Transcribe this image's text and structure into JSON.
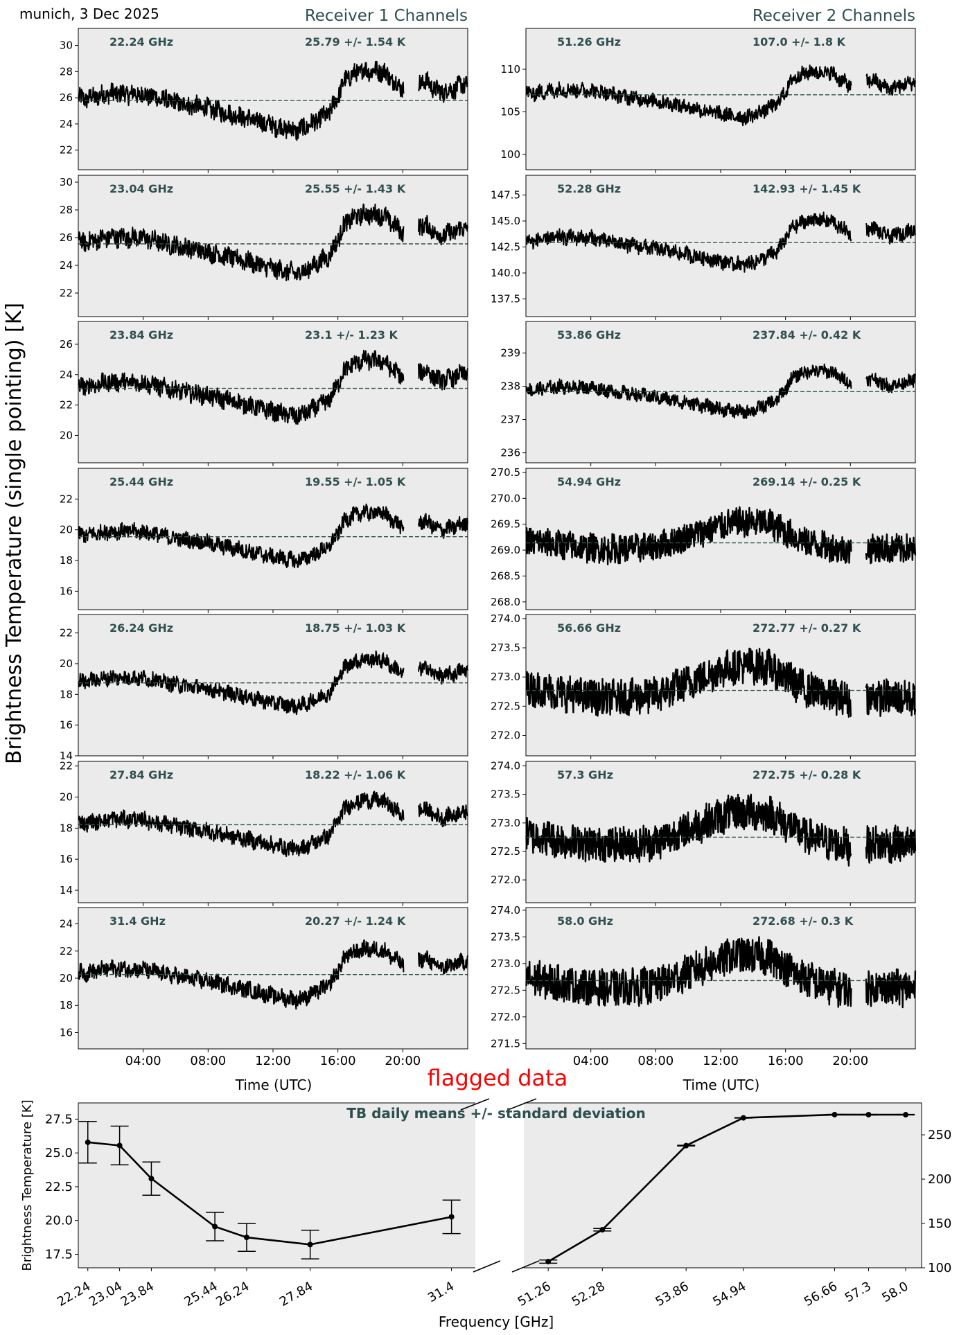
{
  "page": {
    "location_date": "munich, 3 Dec 2025",
    "ylabel": "Brightness Temperature (single pointing) [K]",
    "receiver1_title": "Receiver 1 Channels",
    "receiver2_title": "Receiver 2 Channels",
    "time_xlabel": "Time (UTC)",
    "time_ticks": [
      "04:00",
      "08:00",
      "12:00",
      "16:00",
      "20:00"
    ],
    "flag_label": "flagged data",
    "colors": {
      "panel_bg": "#ebebeb",
      "annotation": "#2f4f4f",
      "trace": "#000000",
      "flag": "#ff0000"
    }
  },
  "chart_data": [
    {
      "type": "line",
      "description_role": "receiver-1-time-series",
      "x_range_hours": [
        0,
        24
      ],
      "xlabel": "Time (UTC)",
      "channels": [
        {
          "freq_label": "22.24 GHz",
          "stat_label": "25.79 +/- 1.54 K",
          "mean": 25.79,
          "ylim": [
            20.5,
            31.3
          ],
          "yticks": [
            22,
            24,
            26,
            28,
            30
          ],
          "tick_labels": [
            "22",
            "24",
            "26",
            "28",
            "30"
          ]
        },
        {
          "freq_label": "23.04 GHz",
          "stat_label": "25.55 +/- 1.43 K",
          "mean": 25.55,
          "ylim": [
            20.3,
            30.5
          ],
          "yticks": [
            22,
            24,
            26,
            28,
            30
          ],
          "tick_labels": [
            "22",
            "24",
            "26",
            "28",
            "30"
          ]
        },
        {
          "freq_label": "23.84 GHz",
          "stat_label": "23.1 +/- 1.23 K",
          "mean": 23.1,
          "ylim": [
            18.2,
            27.5
          ],
          "yticks": [
            20,
            22,
            24,
            26
          ],
          "tick_labels": [
            "20",
            "22",
            "24",
            "26"
          ]
        },
        {
          "freq_label": "25.44 GHz",
          "stat_label": "19.55 +/- 1.05 K",
          "mean": 19.55,
          "ylim": [
            14.8,
            24.0
          ],
          "yticks": [
            16,
            18,
            20,
            22
          ],
          "tick_labels": [
            "16",
            "18",
            "20",
            "22"
          ]
        },
        {
          "freq_label": "26.24 GHz",
          "stat_label": "18.75 +/- 1.03 K",
          "mean": 18.75,
          "ylim": [
            14.0,
            23.2
          ],
          "yticks": [
            14,
            16,
            18,
            20,
            22
          ],
          "tick_labels": [
            "14",
            "16",
            "18",
            "20",
            "22"
          ]
        },
        {
          "freq_label": "27.84 GHz",
          "stat_label": "18.22 +/- 1.06 K",
          "mean": 18.22,
          "ylim": [
            13.2,
            22.3
          ],
          "yticks": [
            14,
            16,
            18,
            20,
            22
          ],
          "tick_labels": [
            "14",
            "16",
            "18",
            "20",
            "22"
          ]
        },
        {
          "freq_label": "31.4 GHz",
          "stat_label": "20.27 +/- 1.24 K",
          "mean": 20.27,
          "ylim": [
            14.8,
            25.2
          ],
          "yticks": [
            16,
            18,
            20,
            22,
            24
          ],
          "tick_labels": [
            "16",
            "18",
            "20",
            "22",
            "24"
          ]
        }
      ]
    },
    {
      "type": "line",
      "description_role": "receiver-2-time-series",
      "x_range_hours": [
        0,
        24
      ],
      "xlabel": "Time (UTC)",
      "channels": [
        {
          "freq_label": "51.26 GHz",
          "stat_label": "107.0 +/- 1.8 K",
          "mean": 107.0,
          "ylim": [
            98.2,
            114.8
          ],
          "yticks": [
            100,
            105,
            110
          ],
          "tick_labels": [
            "100",
            "105",
            "110"
          ]
        },
        {
          "freq_label": "52.28 GHz",
          "stat_label": "142.93 +/- 1.45 K",
          "mean": 142.93,
          "ylim": [
            135.8,
            149.4
          ],
          "yticks": [
            137.5,
            140.0,
            142.5,
            145.0,
            147.5
          ],
          "tick_labels": [
            "137.5",
            "140.0",
            "142.5",
            "145.0",
            "147.5"
          ]
        },
        {
          "freq_label": "53.86 GHz",
          "stat_label": "237.84 +/- 0.42 K",
          "mean": 237.84,
          "ylim": [
            235.7,
            239.95
          ],
          "yticks": [
            236,
            237,
            238,
            239
          ],
          "tick_labels": [
            "236",
            "237",
            "238",
            "239"
          ]
        },
        {
          "freq_label": "54.94 GHz",
          "stat_label": "269.14 +/- 0.25 K",
          "mean": 269.14,
          "ylim": [
            267.85,
            270.58
          ],
          "yticks": [
            268.0,
            268.5,
            269.0,
            269.5,
            270.0,
            270.5
          ],
          "tick_labels": [
            "268.0",
            "268.5",
            "269.0",
            "269.5",
            "270.0",
            "270.5"
          ]
        },
        {
          "freq_label": "56.66 GHz",
          "stat_label": "272.77 +/- 0.27 K",
          "mean": 272.77,
          "ylim": [
            271.65,
            274.07
          ],
          "yticks": [
            272.0,
            272.5,
            273.0,
            273.5,
            274.0
          ],
          "tick_labels": [
            "272.0",
            "272.5",
            "273.0",
            "273.5",
            "274.0"
          ]
        },
        {
          "freq_label": "57.3 GHz",
          "stat_label": "272.75 +/- 0.28 K",
          "mean": 272.75,
          "ylim": [
            271.6,
            274.08
          ],
          "yticks": [
            272.0,
            272.5,
            273.0,
            273.5,
            274.0
          ],
          "tick_labels": [
            "272.0",
            "272.5",
            "273.0",
            "273.5",
            "274.0"
          ]
        },
        {
          "freq_label": "58.0 GHz",
          "stat_label": "272.68 +/- 0.3 K",
          "mean": 272.68,
          "ylim": [
            271.4,
            274.05
          ],
          "yticks": [
            271.5,
            272.0,
            272.5,
            273.0,
            273.5,
            274.0
          ],
          "tick_labels": [
            "271.5",
            "272.0",
            "272.5",
            "273.0",
            "273.5",
            "274.0"
          ]
        }
      ]
    },
    {
      "type": "line",
      "description_role": "daily-means",
      "title": "TB daily means +/- standard deviation",
      "xlabel": "Frequency [GHz]",
      "ylabel_left": "Brightness Temperature [K]",
      "left": {
        "xlim": [
          22.0,
          32.0
        ],
        "ylim": [
          16.5,
          28.7
        ],
        "yticks": [
          17.5,
          20.0,
          22.5,
          25.0,
          27.5
        ],
        "tick_labels": [
          "17.5",
          "20.0",
          "22.5",
          "25.0",
          "27.5"
        ],
        "x": [
          22.24,
          23.04,
          23.84,
          25.44,
          26.24,
          27.84,
          31.4
        ],
        "x_labels": [
          "22.24",
          "23.04",
          "23.84",
          "25.44",
          "26.24",
          "27.84",
          "31.4"
        ],
        "y": [
          25.79,
          25.55,
          23.1,
          19.55,
          18.75,
          18.22,
          20.27
        ],
        "err": [
          1.54,
          1.43,
          1.23,
          1.05,
          1.03,
          1.06,
          1.24
        ]
      },
      "right": {
        "xlim": [
          50.8,
          58.3
        ],
        "ylim": [
          100,
          286
        ],
        "yticks": [
          100,
          150,
          200,
          250
        ],
        "tick_labels": [
          "100",
          "150",
          "200",
          "250"
        ],
        "x": [
          51.26,
          52.28,
          53.86,
          54.94,
          56.66,
          57.3,
          58.0
        ],
        "x_labels": [
          "51.26",
          "52.28",
          "53.86",
          "54.94",
          "56.66",
          "57.3",
          "58.0"
        ],
        "y": [
          107.0,
          142.93,
          237.84,
          269.14,
          272.77,
          272.75,
          272.68
        ],
        "err": [
          1.8,
          1.45,
          0.42,
          0.25,
          0.27,
          0.28,
          0.3
        ]
      }
    }
  ]
}
